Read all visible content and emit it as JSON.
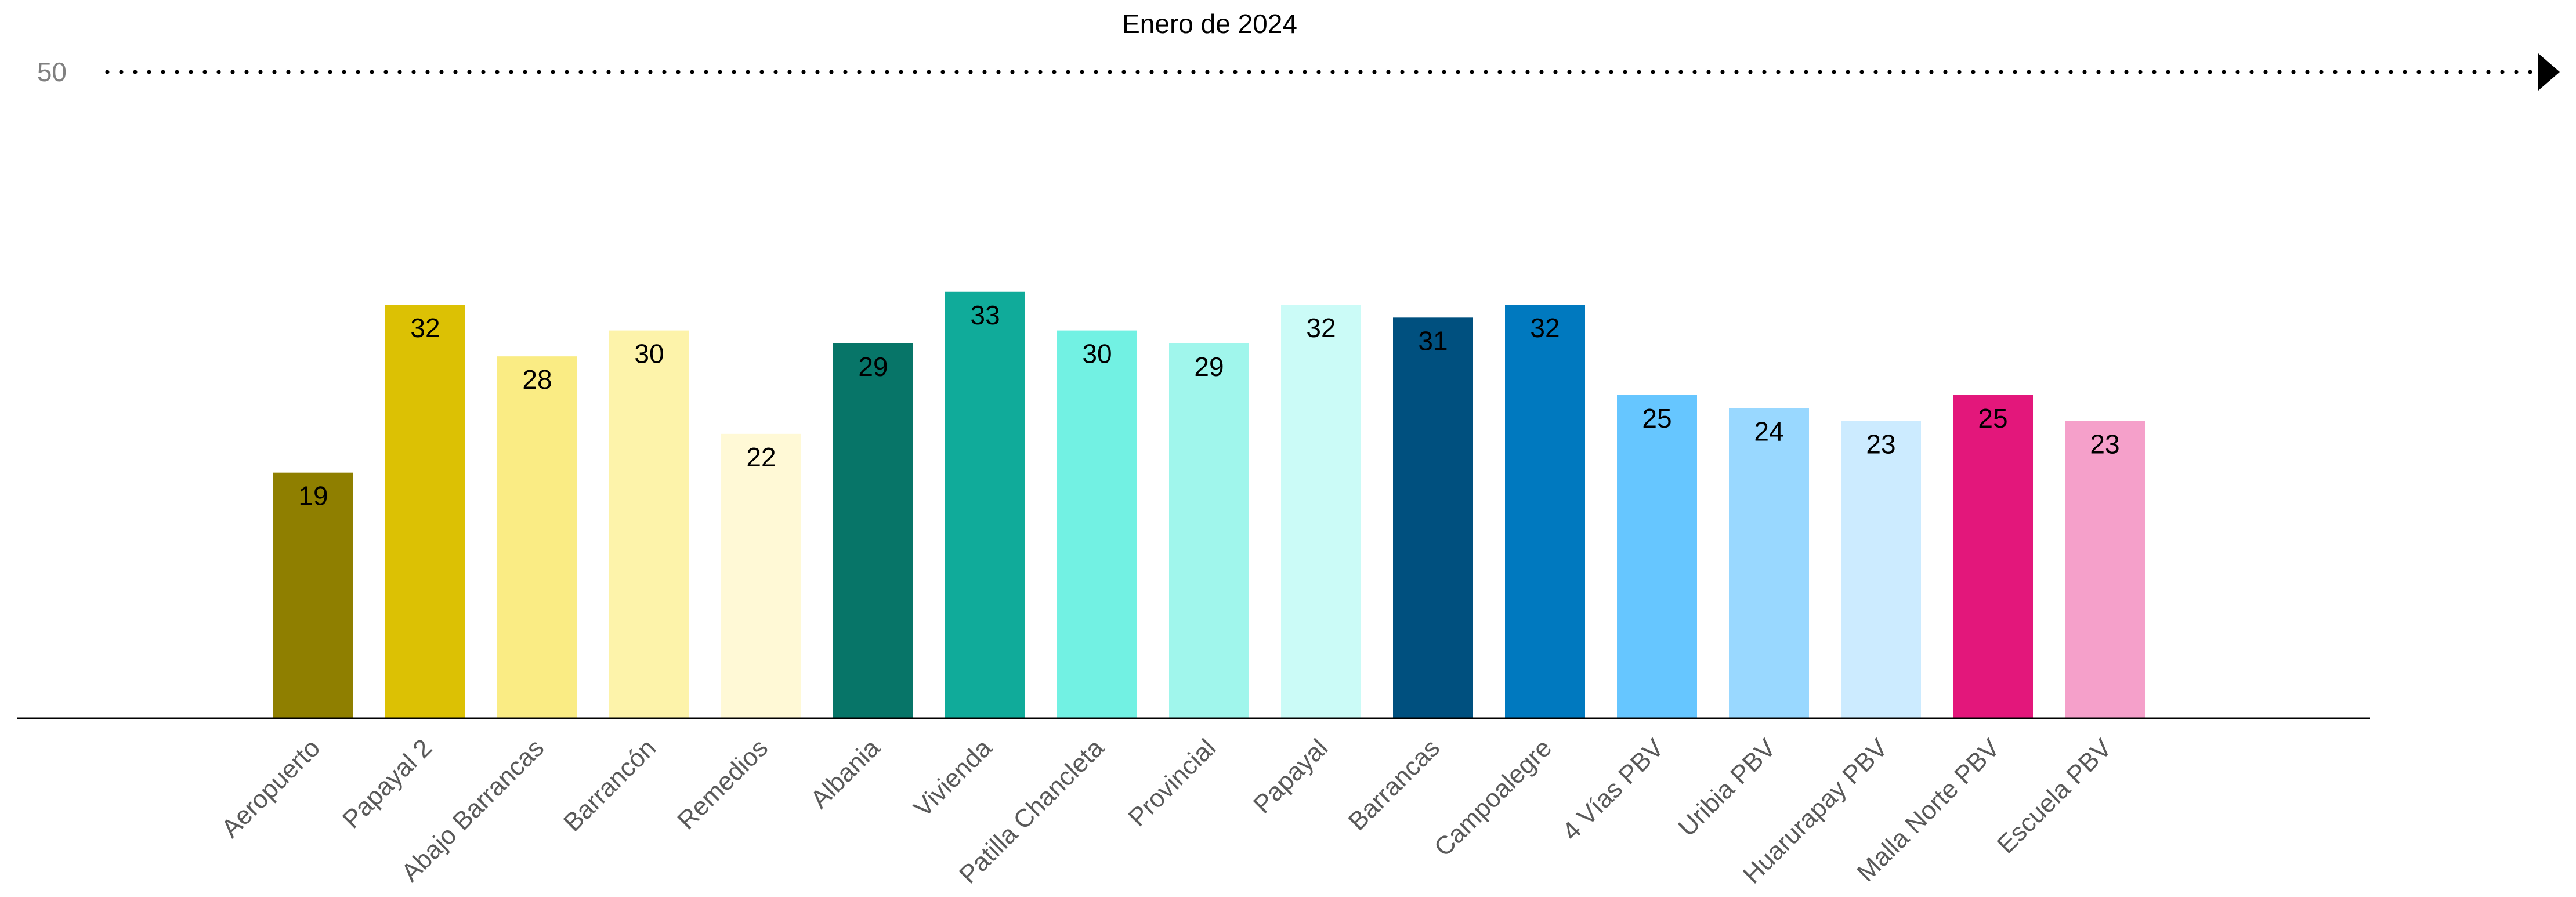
{
  "chart_data": {
    "type": "bar",
    "title": "Enero de 2024",
    "xlabel": "",
    "ylabel": "",
    "ylim": [
      0,
      50
    ],
    "grid": false,
    "reference_line": {
      "value": 50,
      "label": "50",
      "style": "dotted-arrow",
      "color": "#000000"
    },
    "categories": [
      "Aeropuerto",
      "Papayal 2",
      "Abajo Barrancas",
      "Barrancón",
      "Remedios",
      "Albania",
      "Vivienda",
      "Patilla Chancleta",
      "Provincial",
      "Papayal",
      "Barrancas",
      "Campoalegre",
      "4 Vías PBV",
      "Uribia PBV",
      "Huarurapay PBV",
      "Malla Norte PBV",
      "Escuela PBV"
    ],
    "values": [
      19,
      32,
      28,
      30,
      22,
      29,
      33,
      30,
      29,
      32,
      31,
      32,
      25,
      24,
      23,
      25,
      23
    ],
    "value_labels": [
      "19",
      "32",
      "28",
      "30",
      "22",
      "29",
      "33",
      "30",
      "29",
      "32",
      "31",
      "32",
      "25",
      "24",
      "23",
      "25",
      "23"
    ],
    "colors": [
      "#8F7F00",
      "#DCC104",
      "#FAEC84",
      "#FDF3AA",
      "#FFF9D6",
      "#077568",
      "#10AB9A",
      "#72F1E3",
      "#A0F6EC",
      "#CBFBF7",
      "#00507F",
      "#0079BF",
      "#66C6FF",
      "#99D8FF",
      "#CCEBFF",
      "#E3177B",
      "#F5A0CA"
    ]
  }
}
